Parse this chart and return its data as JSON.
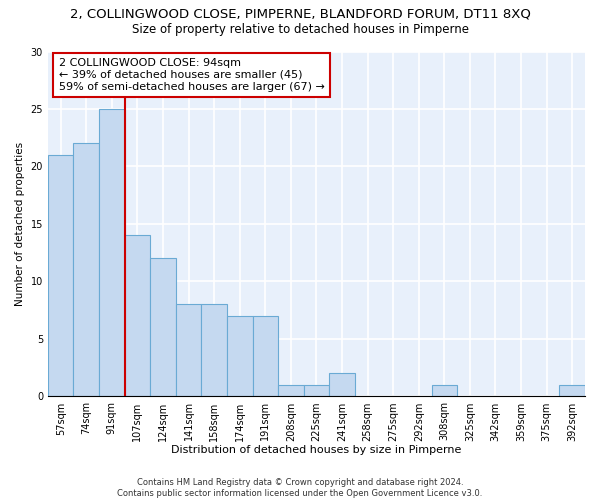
{
  "title": "2, COLLINGWOOD CLOSE, PIMPERNE, BLANDFORD FORUM, DT11 8XQ",
  "subtitle": "Size of property relative to detached houses in Pimperne",
  "xlabel": "Distribution of detached houses by size in Pimperne",
  "ylabel": "Number of detached properties",
  "bar_labels": [
    "57sqm",
    "74sqm",
    "91sqm",
    "107sqm",
    "124sqm",
    "141sqm",
    "158sqm",
    "174sqm",
    "191sqm",
    "208sqm",
    "225sqm",
    "241sqm",
    "258sqm",
    "275sqm",
    "292sqm",
    "308sqm",
    "325sqm",
    "342sqm",
    "359sqm",
    "375sqm",
    "392sqm"
  ],
  "bar_values": [
    21,
    22,
    25,
    14,
    12,
    8,
    8,
    7,
    7,
    1,
    1,
    2,
    0,
    0,
    0,
    1,
    0,
    0,
    0,
    0,
    1
  ],
  "bar_color": "#c5d9f0",
  "bar_edge_color": "#6aaad4",
  "background_color": "#e8f0fb",
  "grid_color": "#ffffff",
  "vline_color": "#cc0000",
  "vline_pos": 2.5,
  "annotation_text": "2 COLLINGWOOD CLOSE: 94sqm\n← 39% of detached houses are smaller (45)\n59% of semi-detached houses are larger (67) →",
  "annotation_box_color": "#ffffff",
  "annotation_box_edge": "#cc0000",
  "ylim": [
    0,
    30
  ],
  "yticks": [
    0,
    5,
    10,
    15,
    20,
    25,
    30
  ],
  "footer_text": "Contains HM Land Registry data © Crown copyright and database right 2024.\nContains public sector information licensed under the Open Government Licence v3.0.",
  "title_fontsize": 9.5,
  "subtitle_fontsize": 8.5,
  "xlabel_fontsize": 8,
  "ylabel_fontsize": 7.5,
  "tick_fontsize": 7,
  "annotation_fontsize": 8,
  "footer_fontsize": 6
}
